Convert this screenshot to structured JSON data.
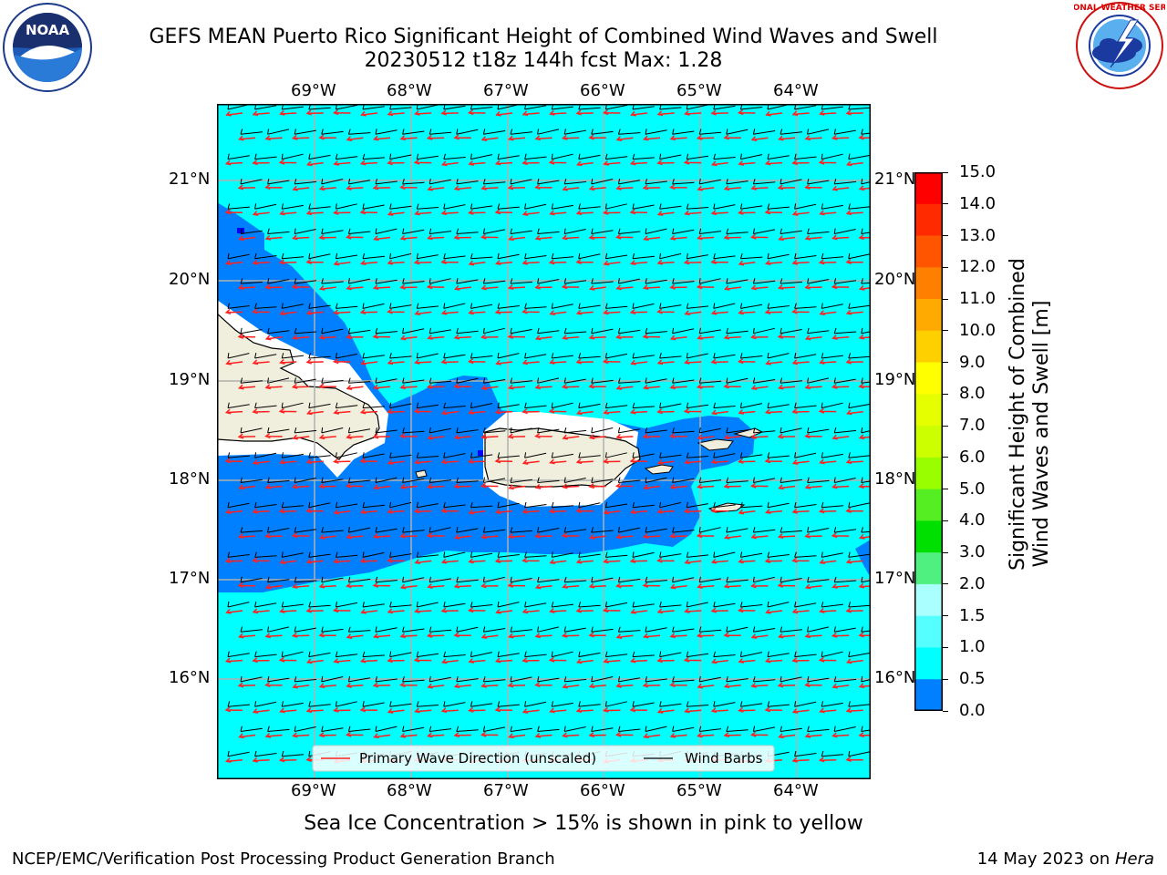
{
  "header": {
    "title_line1": "GEFS MEAN Puerto Rico Significant Height of Combined Wind Waves and Swell",
    "title_line2": "20230512 t18z 144h fcst   Max: 1.28"
  },
  "logos": {
    "noaa_text": "NOAA",
    "noaa_ring": "NATIONAL OCEANIC AND ATMOSPHERIC ADMINISTRATION · U.S. DEPARTMENT OF COMMERCE",
    "nws_ring": "NATIONAL WEATHER SERVICE"
  },
  "map": {
    "lon_labels": [
      "69°W",
      "68°W",
      "67°W",
      "66°W",
      "65°W",
      "64°W"
    ],
    "lat_labels": [
      "21°N",
      "20°N",
      "19°N",
      "18°N",
      "17°N",
      "16°N"
    ],
    "colors": {
      "sea_high": "#00ffff",
      "sea_mid": "#0080ff",
      "land": "#f0eedc",
      "wave_arrow": "#ff2020",
      "wind_barb": "#000000",
      "grid": "#b0b0b0"
    },
    "legend": {
      "wave_label": "Primary Wave Direction (unscaled)",
      "barb_label": "Wind Barbs"
    }
  },
  "colorbar": {
    "title_line1": "Significant Height of Combined",
    "title_line2": "Wind Waves and Swell [m]",
    "ticks": [
      "15.0",
      "14.0",
      "13.0",
      "12.0",
      "11.0",
      "10.0",
      "9.0",
      "8.0",
      "7.0",
      "6.0",
      "5.0",
      "4.0",
      "3.0",
      "2.0",
      "1.5",
      "1.0",
      "0.5",
      "0.0"
    ],
    "colors": [
      "#ff0000",
      "#ff2a00",
      "#ff5500",
      "#ff8000",
      "#ffaa00",
      "#ffd000",
      "#ffff00",
      "#e6ff00",
      "#ccff00",
      "#99ff00",
      "#55ee22",
      "#00e000",
      "#50f080",
      "#aaffff",
      "#55ffff",
      "#00ffff",
      "#0080ff",
      "#0000ff"
    ]
  },
  "note": "Sea Ice Concentration > 15% is shown in pink to yellow",
  "footer": {
    "left": "NCEP/EMC/Verification Post Processing Product Generation Branch",
    "right_date": "14 May 2023 on ",
    "right_host": "Hera"
  }
}
